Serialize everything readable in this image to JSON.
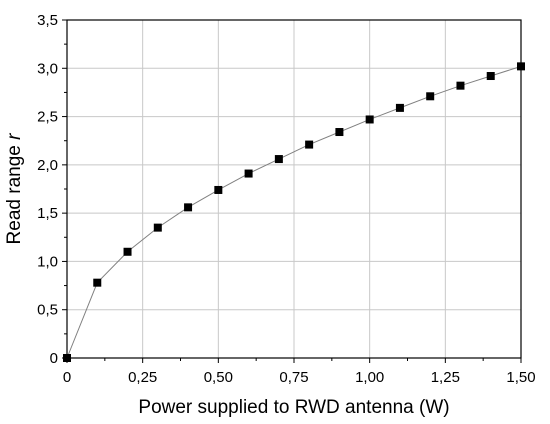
{
  "chart_data": {
    "type": "line",
    "xlabel": "Power supplied to RWD antenna (W)",
    "ylabel_main": "Read range ",
    "ylabel_var": "r",
    "xlim": [
      0,
      1.5
    ],
    "ylim": [
      0,
      3.5
    ],
    "x_ticks": [
      0,
      0.25,
      0.5,
      0.75,
      1.0,
      1.25,
      1.5
    ],
    "x_tick_labels": [
      "0",
      "0,25",
      "0,50",
      "0,75",
      "1,00",
      "1,25",
      "1,50"
    ],
    "y_ticks": [
      0,
      0.5,
      1.0,
      1.5,
      2.0,
      2.5,
      3.0,
      3.5
    ],
    "y_tick_labels": [
      "0",
      "0,5",
      "1,0",
      "1,5",
      "2,0",
      "2,5",
      "3,0",
      "3,5"
    ],
    "grid": true,
    "series": [
      {
        "x": [
          0,
          0.1,
          0.2,
          0.3,
          0.4,
          0.5,
          0.6,
          0.7,
          0.8,
          0.9,
          1.0,
          1.1,
          1.2,
          1.3,
          1.4,
          1.5
        ],
        "y": [
          0,
          0.78,
          1.1,
          1.35,
          1.56,
          1.74,
          1.91,
          2.06,
          2.21,
          2.34,
          2.47,
          2.59,
          2.71,
          2.82,
          2.92,
          3.02
        ],
        "line_color": "#808080",
        "marker": "square",
        "marker_color": "#000000"
      }
    ]
  }
}
